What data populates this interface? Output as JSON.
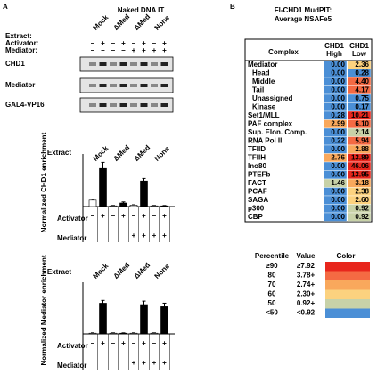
{
  "panel_a": {
    "label": "A",
    "title": "Naked DNA IT",
    "header_rows": [
      "Extract:",
      "Activator:",
      "Mediator:"
    ],
    "extracts": [
      "Mock",
      "ΔMed",
      "ΔMed",
      "None"
    ],
    "activator": [
      "–",
      "+",
      "–",
      "+",
      "–",
      "+",
      "–",
      "+"
    ],
    "mediator": [
      "–",
      "–",
      "–",
      "–",
      "+",
      "+",
      "+",
      "+"
    ],
    "blots": [
      "CHD1",
      "Mediator",
      "GAL4-VP16"
    ],
    "charts": [
      {
        "type": "bar",
        "ylabel": "Normalized CHD1 enrichment",
        "extract_label": "Extract",
        "extracts": [
          "Mock",
          "ΔMed",
          "ΔMed",
          "None"
        ],
        "values": [
          0.18,
          1.07,
          0.02,
          0.1,
          0.04,
          0.72,
          0.02,
          0.02
        ],
        "errors": [
          0.03,
          0.17,
          0.01,
          0.03,
          0.01,
          0.07,
          0.01,
          0.01
        ],
        "fills": [
          "#ffffff",
          "#000000",
          "#ffffff",
          "#000000",
          "#ffffff",
          "#000000",
          "#ffffff",
          "#000000"
        ],
        "ylim": [
          0,
          1.35
        ],
        "row_labels": [
          "Activator",
          "Mediator"
        ],
        "activator": [
          "–",
          "+",
          "–",
          "+",
          "–",
          "+",
          "–",
          "+"
        ],
        "mediator": [
          null,
          null,
          null,
          null,
          "+",
          "+",
          "+",
          "+"
        ]
      },
      {
        "type": "bar",
        "ylabel": "Normalized Mediator enrichment",
        "extract_label": "Extract",
        "extracts": [
          "Mock",
          "ΔMed",
          "ΔMed",
          "None"
        ],
        "values": [
          0.02,
          0.88,
          0.02,
          0.02,
          0.02,
          0.84,
          0.02,
          0.78
        ],
        "errors": [
          0.01,
          0.08,
          0.01,
          0.01,
          0.01,
          0.1,
          0.01,
          0.1
        ],
        "fills": [
          "#ffffff",
          "#000000",
          "#ffffff",
          "#000000",
          "#ffffff",
          "#000000",
          "#ffffff",
          "#000000"
        ],
        "ylim": [
          0,
          1.35
        ],
        "row_labels": [
          "Activator",
          "Mediator"
        ],
        "activator": [
          "–",
          "+",
          "–",
          "+",
          "–",
          "+",
          "–",
          "+"
        ],
        "mediator": [
          null,
          null,
          null,
          null,
          "+",
          "+",
          "+",
          "+"
        ]
      }
    ]
  },
  "panel_b": {
    "label": "B",
    "title": [
      "Fl-CHD1 MudPIT:",
      "Average NSAFe5"
    ],
    "table": {
      "header": [
        "Complex",
        "CHD1 High",
        "CHD1 Low"
      ],
      "rows": [
        [
          "Mediator",
          "0.00",
          "2.36"
        ],
        [
          "Head",
          "0.00",
          "0.28"
        ],
        [
          "Middle",
          "0.00",
          "4.40"
        ],
        [
          "Tail",
          "0.00",
          "4.17"
        ],
        [
          "Unassigned",
          "0.00",
          "0.75"
        ],
        [
          "Kinase",
          "0.00",
          "0.17"
        ],
        [
          "Set1/MLL",
          "0.28",
          "10.21"
        ],
        [
          "PAF complex",
          "2.99",
          "6.10"
        ],
        [
          "Sup. Elon. Comp.",
          "0.00",
          "2.14"
        ],
        [
          "RNA Pol II",
          "0.22",
          "5.94"
        ],
        [
          "TFIID",
          "0.00",
          "2.88"
        ],
        [
          "TFIIH",
          "2.76",
          "13.89"
        ],
        [
          "Ino80",
          "0.00",
          "46.06"
        ],
        [
          "PTEFb",
          "0.00",
          "13.95"
        ],
        [
          "FACT",
          "1.46",
          "3.18"
        ],
        [
          "PCAF",
          "0.00",
          "2.38"
        ],
        [
          "SAGA",
          "0.00",
          "2.60"
        ],
        [
          "p300",
          "0.00",
          "0.92"
        ],
        [
          "CBP",
          "0.00",
          "0.92"
        ]
      ]
    },
    "legend": {
      "header": [
        "Percentile",
        "Value",
        "Color"
      ],
      "rows": [
        {
          "percentile": "≥90",
          "value": "≥7.92",
          "color": "#e8261c"
        },
        {
          "percentile": "80",
          "value": "3.78+",
          "color": "#f46a43"
        },
        {
          "percentile": "70",
          "value": "2.74+",
          "color": "#f9a85c"
        },
        {
          "percentile": "60",
          "value": "2.30+",
          "color": "#fcd27f"
        },
        {
          "percentile": "50",
          "value": "0.92+",
          "color": "#c8d2a8"
        },
        {
          "percentile": "<50",
          "value": "<0.92",
          "color": "#4b8fd6"
        }
      ]
    }
  }
}
